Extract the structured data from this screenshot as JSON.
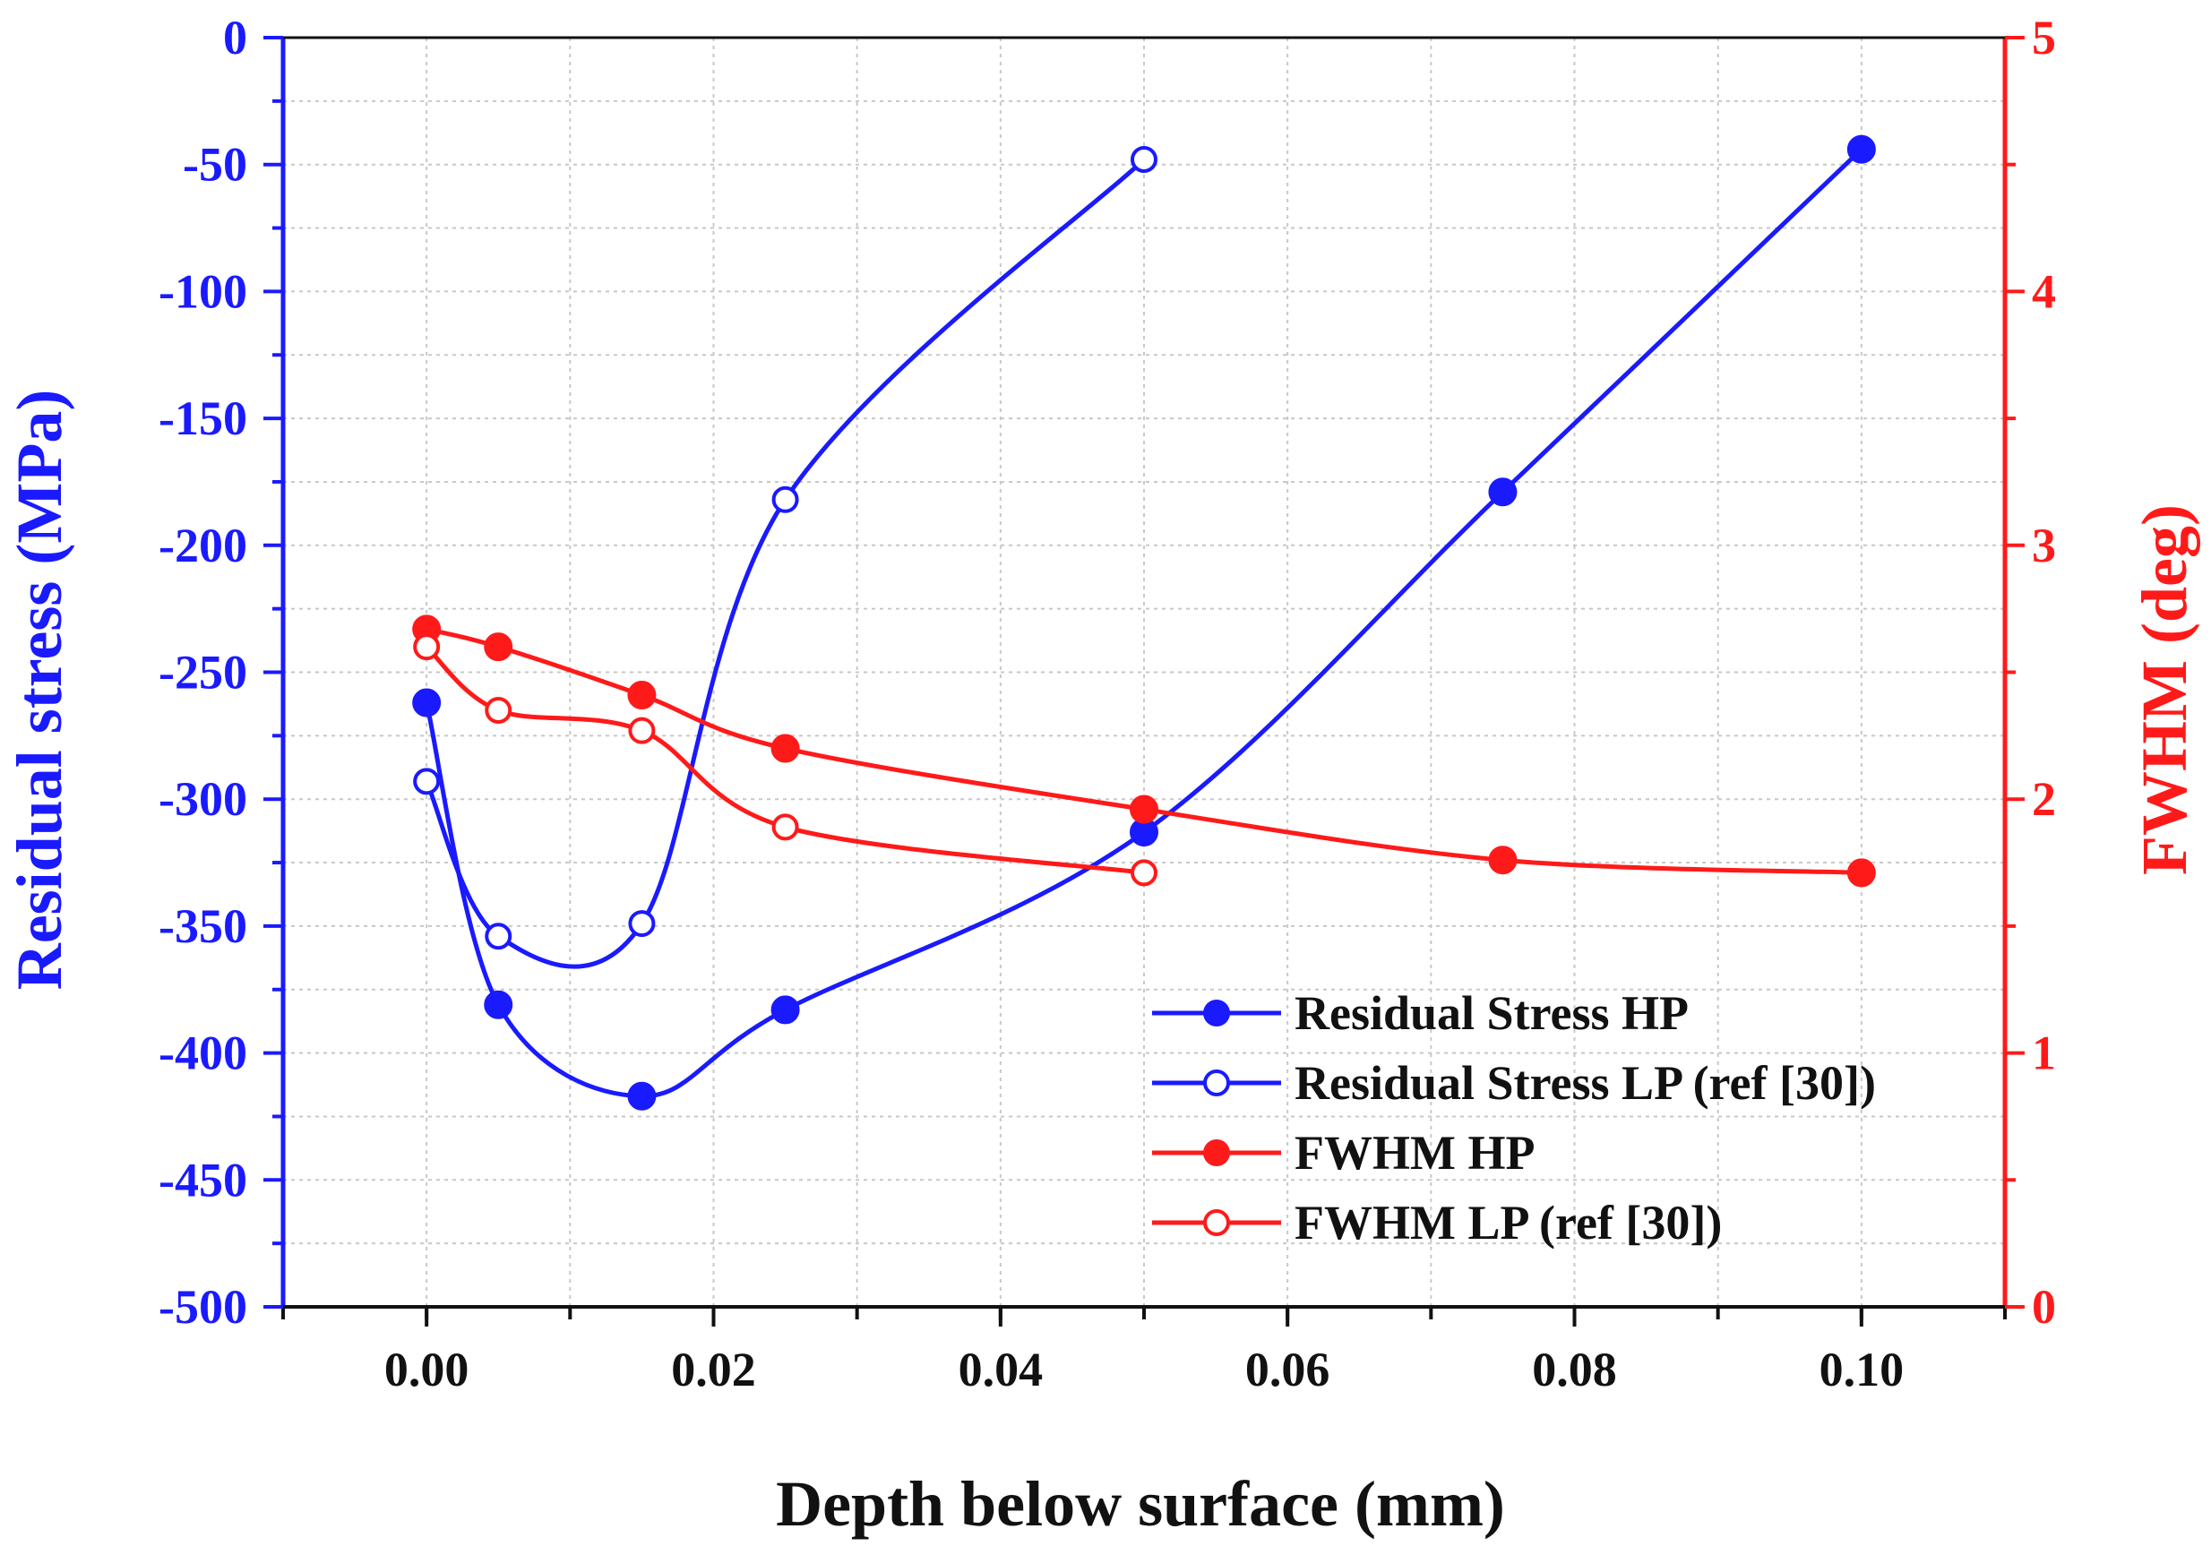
{
  "chart_data": {
    "type": "line",
    "xlabel": "Depth below surface (mm)",
    "ylabel_left": "Residual stress (MPa)",
    "ylabel_right": "FWHM (deg)",
    "xlim": [
      -0.01,
      0.11
    ],
    "ylim_left": [
      -500,
      0
    ],
    "ylim_right": [
      0,
      5
    ],
    "x_ticks": [
      "0.00",
      "0.02",
      "0.04",
      "0.06",
      "0.08",
      "0.10"
    ],
    "y_left_ticks": [
      "0",
      "-50",
      "-100",
      "-150",
      "-200",
      "-250",
      "-300",
      "-350",
      "-400",
      "-450",
      "-500"
    ],
    "y_right_ticks": [
      "0",
      "1",
      "2",
      "3",
      "4",
      "5"
    ],
    "grid": true,
    "legend_position": "bottom-right",
    "colors": {
      "left_axis": "#1a1aff",
      "right_axis": "#ff1a1a"
    },
    "series": [
      {
        "name": "Residual Stress HP",
        "axis": "left",
        "marker": "filled",
        "x": [
          0.0,
          0.005,
          0.015,
          0.025,
          0.05,
          0.075,
          0.1
        ],
        "y": [
          -262,
          -381,
          -417,
          -383,
          -313,
          -179,
          -44
        ]
      },
      {
        "name": "Residual Stress LP (ref [30])",
        "axis": "left",
        "marker": "open",
        "x": [
          0.0,
          0.005,
          0.015,
          0.025,
          0.05
        ],
        "y": [
          -293,
          -354,
          -349,
          -182,
          -48
        ]
      },
      {
        "name": "FWHM HP",
        "axis": "right",
        "marker": "filled",
        "x": [
          0.0,
          0.005,
          0.015,
          0.025,
          0.05,
          0.075,
          0.1
        ],
        "y": [
          2.67,
          2.6,
          2.41,
          2.2,
          1.96,
          1.76,
          1.71
        ]
      },
      {
        "name": "FWHM LP (ref [30])",
        "axis": "right",
        "marker": "open",
        "x": [
          0.0,
          0.005,
          0.015,
          0.025,
          0.05
        ],
        "y": [
          2.6,
          2.35,
          2.27,
          1.89,
          1.71
        ]
      }
    ]
  }
}
